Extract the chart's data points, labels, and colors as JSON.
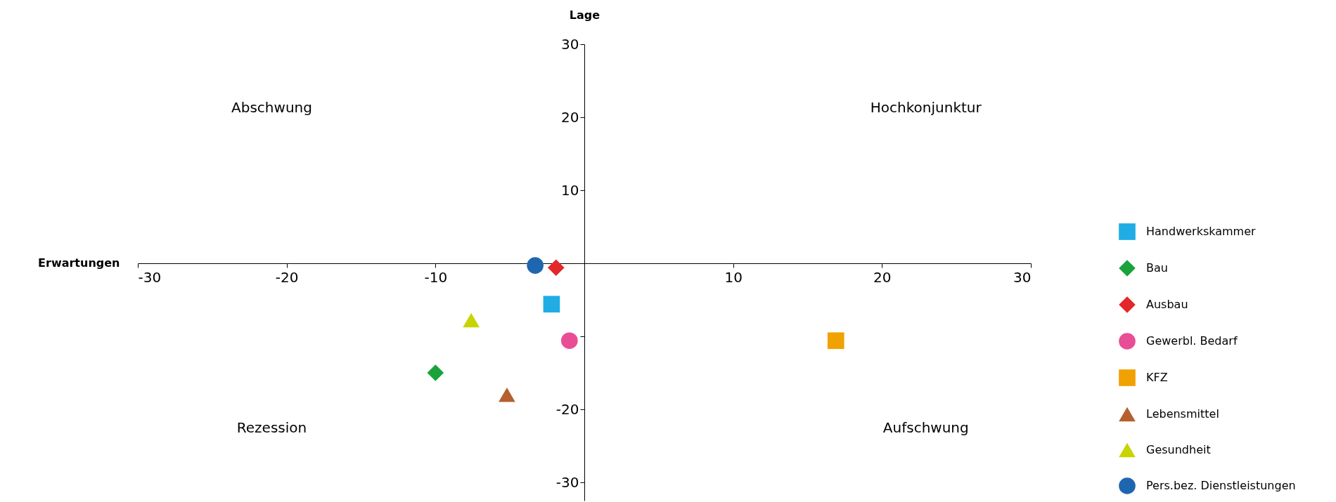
{
  "chart_data": {
    "type": "scatter",
    "xlabel": "Erwartungen",
    "ylabel": "Lage",
    "xlim": [
      -30,
      30
    ],
    "xticks": [
      -30,
      -20,
      -10,
      10,
      20,
      30
    ],
    "ylim": [
      -32.5,
      30
    ],
    "yticks": [
      -30,
      -20,
      {
        "value": -10,
        "label": null
      },
      10,
      20,
      30
    ],
    "grid": false,
    "legend": "right",
    "annotations": [
      "Abschwung",
      "Hochkonjunktur",
      "Rezession",
      "Aufschwung"
    ],
    "series": [
      {
        "name": "Handwerkskammer",
        "color": "#1fade4",
        "marker": "square",
        "x": [
          -2.2
        ],
        "values": [
          -5.6
        ]
      },
      {
        "name": "Bau",
        "color": "#1aa33a",
        "marker": "diamond",
        "x": [
          -10.0
        ],
        "values": [
          -15.0
        ]
      },
      {
        "name": "Ausbau",
        "color": "#e3272b",
        "marker": "diamond",
        "x": [
          -1.9
        ],
        "values": [
          -0.6
        ]
      },
      {
        "name": "Gewerbl. Bedarf",
        "color": "#e84e95",
        "marker": "circle",
        "x": [
          -1.0
        ],
        "values": [
          -10.6
        ]
      },
      {
        "name": "KFZ",
        "color": "#f0a202",
        "marker": "square",
        "x": [
          16.9
        ],
        "values": [
          -10.6
        ]
      },
      {
        "name": "Lebensmittel",
        "color": "#b5602e",
        "marker": "triangle",
        "x": [
          -5.2
        ],
        "values": [
          -18.0
        ]
      },
      {
        "name": "Gesundheit",
        "color": "#c8d400",
        "marker": "triangle",
        "x": [
          -7.6
        ],
        "values": [
          -7.8
        ]
      },
      {
        "name": "Pers.bez. Dienstleistungen",
        "color": "#1f66b0",
        "marker": "circle",
        "x": [
          -3.3
        ],
        "values": [
          -0.3
        ]
      }
    ]
  }
}
